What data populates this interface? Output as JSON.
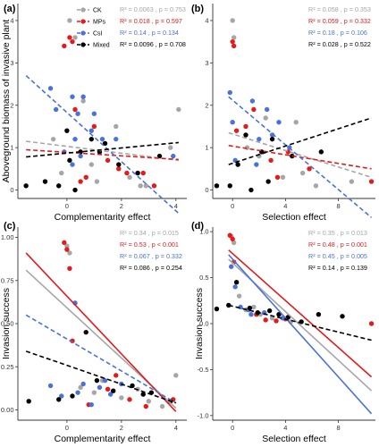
{
  "colors": {
    "CK": "#a6a6a6",
    "MPs": "#e41a1c",
    "CsI": "#4a72d8",
    "Mixed": "#000000",
    "axis": "#333333"
  },
  "legend": {
    "labels": [
      "CK",
      "MPs",
      "CsI",
      "Mixed"
    ]
  },
  "chart_data": [
    {
      "panel": "(a)",
      "type": "scatter",
      "xlabel": "Complementarity effect",
      "ylabel": "Aboveground biomass of invasive plant",
      "xlim": [
        -1.8,
        4.4
      ],
      "ylim": [
        -0.2,
        4.4
      ],
      "xticks": [
        0,
        2,
        4
      ],
      "yticks": [
        0,
        1,
        2,
        3,
        4
      ],
      "stats": [
        {
          "group": "CK",
          "text": "R² = 0.0063 , p = 0.753"
        },
        {
          "group": "MPs",
          "text": "R² = 0.018 , p = 0.597"
        },
        {
          "group": "CsI",
          "text": "R² = 0.14 , p = 0.134"
        },
        {
          "group": "Mixed",
          "text": "R² = 0.0096 , p = 0.708"
        }
      ],
      "fit_lines": [
        {
          "group": "CK",
          "x": [
            -1.5,
            4.1
          ],
          "y": [
            1.15,
            0.7
          ]
        },
        {
          "group": "MPs",
          "x": [
            -1.5,
            4.1
          ],
          "y": [
            0.95,
            0.72
          ]
        },
        {
          "group": "CsI",
          "x": [
            -1.5,
            4.1
          ],
          "y": [
            2.7,
            -0.55
          ]
        },
        {
          "group": "Mixed",
          "x": [
            -1.5,
            4.1
          ],
          "y": [
            0.78,
            1.12
          ]
        }
      ],
      "series": [
        {
          "group": "CK",
          "x": [
            0.1,
            0.3,
            -0.5,
            0.6,
            1.8,
            2.3,
            2.9,
            3.8,
            4.1,
            0.9,
            -0.2,
            2.7,
            1.1
          ],
          "y": [
            4.0,
            3.6,
            1.2,
            2.1,
            1.5,
            0.3,
            0.1,
            1.0,
            1.9,
            0.6,
            0.4,
            0.1,
            0.2
          ]
        },
        {
          "group": "MPs",
          "x": [
            0.1,
            -0.1,
            0.2,
            1.5,
            2.2,
            2.8,
            3.2,
            0.7,
            1.0,
            1.9,
            0.5,
            0.3
          ],
          "y": [
            3.6,
            3.4,
            3.5,
            0.7,
            0.4,
            0.4,
            0.1,
            0.3,
            1.5,
            0.5,
            0.2,
            1.9
          ]
        },
        {
          "group": "CsI",
          "x": [
            -0.6,
            -0.4,
            0.2,
            0.4,
            0.6,
            0.3,
            0.9,
            1.3,
            1.8,
            0.2,
            -0.1,
            0.5,
            3.9,
            1.0
          ],
          "y": [
            2.4,
            1.9,
            2.2,
            1.8,
            2.2,
            1.2,
            1.4,
            1.2,
            1.2,
            0.6,
            0.9,
            0.8,
            0.8,
            1.8
          ]
        },
        {
          "group": "Mixed",
          "x": [
            -1.5,
            -0.8,
            -0.3,
            0.1,
            0.5,
            0.9,
            1.4,
            1.9,
            2.6,
            3.4,
            0.3,
            0.0,
            1.2
          ],
          "y": [
            0.1,
            0.2,
            0.1,
            0.7,
            0.9,
            1.2,
            1.1,
            0.6,
            0.4,
            0.8,
            0.0,
            1.4,
            0.9
          ]
        }
      ]
    },
    {
      "panel": "(b)",
      "type": "scatter",
      "xlabel": "Selection effect",
      "ylabel": "",
      "xlim": [
        -1.5,
        10.8
      ],
      "ylim": [
        -0.2,
        4.4
      ],
      "xticks": [
        0,
        4,
        8
      ],
      "yticks": [
        0,
        1,
        2,
        3,
        4
      ],
      "stats": [
        {
          "group": "CK",
          "text": "R² = 0.058 , p = 0.353"
        },
        {
          "group": "MPs",
          "text": "R² = 0.059 , p = 0.332"
        },
        {
          "group": "CsI",
          "text": "R² = 0.18 , p = 0.106"
        },
        {
          "group": "Mixed",
          "text": "R² = 0.028 , p = 0.522"
        }
      ],
      "fit_lines": [
        {
          "group": "CK",
          "x": [
            -0.3,
            10.5
          ],
          "y": [
            1.35,
            0.3
          ]
        },
        {
          "group": "MPs",
          "x": [
            -0.3,
            10.5
          ],
          "y": [
            1.05,
            0.5
          ]
        },
        {
          "group": "CsI",
          "x": [
            -0.3,
            10.5
          ],
          "y": [
            2.2,
            -0.65
          ]
        },
        {
          "group": "Mixed",
          "x": [
            -0.3,
            10.5
          ],
          "y": [
            0.6,
            1.7
          ]
        }
      ],
      "series": [
        {
          "group": "CK",
          "x": [
            0.0,
            0.1,
            2.5,
            3.8,
            4.8,
            6.3,
            9.0,
            2.0,
            1.1,
            5.3
          ],
          "y": [
            4.0,
            3.6,
            1.7,
            0.3,
            1.6,
            0.1,
            0.2,
            0.8,
            1.0,
            0.4
          ]
        },
        {
          "group": "MPs",
          "x": [
            0.0,
            0.1,
            1.0,
            2.9,
            4.2,
            5.8,
            10.5,
            3.4,
            1.6,
            0.3
          ],
          "y": [
            3.5,
            3.4,
            1.5,
            0.7,
            0.9,
            0.5,
            0.2,
            0.3,
            1.9,
            1.4
          ]
        },
        {
          "group": "CsI",
          "x": [
            -0.2,
            0.0,
            2.0,
            2.6,
            3.0,
            3.5,
            4.3,
            1.5,
            0.2,
            1.8
          ],
          "y": [
            2.3,
            1.6,
            1.2,
            1.9,
            1.3,
            1.6,
            1.0,
            2.1,
            0.7,
            0.6
          ]
        },
        {
          "group": "Mixed",
          "x": [
            -1.2,
            -0.2,
            0.4,
            1.0,
            2.2,
            3.0,
            4.5,
            6.7,
            1.4,
            2.7
          ],
          "y": [
            0.1,
            0.1,
            0.6,
            1.3,
            0.9,
            1.2,
            0.8,
            0.9,
            0.0,
            0.2
          ]
        }
      ]
    },
    {
      "panel": "(c)",
      "type": "scatter",
      "xlabel": "Complementarity effect",
      "ylabel": "Invasion success",
      "xlim": [
        -1.8,
        4.4
      ],
      "ylim": [
        -0.06,
        1.06
      ],
      "xticks": [
        0,
        2,
        4
      ],
      "yticks": [
        0,
        0.25,
        0.5,
        0.75,
        1.0
      ],
      "yticklabels": [
        "0.00",
        "0.25",
        "0.50",
        "0.75",
        "1.00"
      ],
      "stats": [
        {
          "group": "CK",
          "text": "R² = 0.34 , p = 0.015"
        },
        {
          "group": "MPs",
          "text": "R² = 0.53 , p < 0.001"
        },
        {
          "group": "CsI",
          "text": "R² = 0.067 , p = 0.332"
        },
        {
          "group": "Mixed",
          "text": "R² = 0.086 , p = 0.254"
        }
      ],
      "fit_lines": [
        {
          "group": "CK",
          "x": [
            -1.5,
            4.0
          ],
          "y": [
            0.81,
            0.01
          ]
        },
        {
          "group": "MPs",
          "x": [
            -1.5,
            4.0
          ],
          "y": [
            0.91,
            -0.01
          ]
        },
        {
          "group": "CsI",
          "x": [
            -1.5,
            4.0
          ],
          "y": [
            0.55,
            0.04
          ]
        },
        {
          "group": "Mixed",
          "x": [
            -1.5,
            4.0
          ],
          "y": [
            0.34,
            0.04
          ]
        }
      ],
      "series": [
        {
          "group": "CK",
          "x": [
            0.0,
            0.1,
            0.5,
            1.3,
            2.0,
            2.6,
            3.0,
            4.0,
            3.5,
            1.0
          ],
          "y": [
            0.95,
            0.91,
            0.13,
            0.17,
            0.07,
            0.12,
            0.05,
            0.2,
            0.02,
            0.1
          ]
        },
        {
          "group": "MPs",
          "x": [
            -0.1,
            0.0,
            0.1,
            0.2,
            1.5,
            2.3,
            2.9,
            3.9,
            0.8,
            1.8
          ],
          "y": [
            0.97,
            0.93,
            0.82,
            0.4,
            0.12,
            0.06,
            0.02,
            0.06,
            0.03,
            0.2
          ]
        },
        {
          "group": "CsI",
          "x": [
            -0.6,
            -0.2,
            0.3,
            0.6,
            1.2,
            1.6,
            2.0,
            0.9,
            0.4,
            1.4
          ],
          "y": [
            0.14,
            0.08,
            0.62,
            0.15,
            0.13,
            0.09,
            0.15,
            0.03,
            0.1,
            0.17
          ]
        },
        {
          "group": "Mixed",
          "x": [
            -1.4,
            -0.3,
            0.2,
            0.7,
            1.1,
            1.7,
            2.4,
            3.1,
            3.8,
            2.8
          ],
          "y": [
            0.05,
            0.06,
            0.08,
            0.45,
            0.17,
            0.11,
            0.14,
            0.1,
            0.05,
            0.09
          ]
        }
      ]
    },
    {
      "panel": "(d)",
      "type": "scatter",
      "xlabel": "Selection effect",
      "ylabel": "Invasion success",
      "xlim": [
        -1.5,
        10.8
      ],
      "ylim": [
        -1.05,
        1.05
      ],
      "xticks": [
        0,
        4,
        8
      ],
      "yticks": [
        -1.0,
        -0.5,
        0.0,
        0.5,
        1.0
      ],
      "yticklabels": [
        "-1.0",
        "-0.5",
        "0.0",
        "0.5",
        "1.0"
      ],
      "stats": [
        {
          "group": "CK",
          "text": "R² = 0.35 , p = 0.013"
        },
        {
          "group": "MPs",
          "text": "R² = 0.48 , p = 0.001"
        },
        {
          "group": "CsI",
          "text": "R² = 0.45 , p = 0.005"
        },
        {
          "group": "Mixed",
          "text": "R² = 0.14 , p = 0.139"
        }
      ],
      "fit_lines": [
        {
          "group": "CK",
          "x": [
            -0.3,
            10.5
          ],
          "y": [
            0.7,
            -0.73
          ]
        },
        {
          "group": "MPs",
          "x": [
            -0.3,
            10.5
          ],
          "y": [
            0.8,
            -0.58
          ]
        },
        {
          "group": "CsI",
          "x": [
            -0.3,
            10.5
          ],
          "y": [
            0.75,
            -0.98
          ]
        },
        {
          "group": "Mixed",
          "x": [
            -0.3,
            10.5
          ],
          "y": [
            0.2,
            -0.18
          ]
        }
      ],
      "series": [
        {
          "group": "CK",
          "x": [
            -0.1,
            0.1,
            1.0,
            2.1,
            3.0,
            4.4,
            0.5,
            1.6
          ],
          "y": [
            0.95,
            0.88,
            0.15,
            0.1,
            0.06,
            0.02,
            0.3,
            0.18
          ]
        },
        {
          "group": "MPs",
          "x": [
            -0.2,
            0.0,
            0.1,
            2.5,
            3.3,
            4.0,
            10.5,
            1.8
          ],
          "y": [
            0.96,
            0.92,
            0.67,
            0.04,
            0.03,
            0.05,
            0.0,
            0.1
          ]
        },
        {
          "group": "CsI",
          "x": [
            -0.1,
            0.2,
            1.2,
            2.4,
            3.8,
            0.6,
            1.4
          ],
          "y": [
            0.62,
            0.4,
            0.15,
            0.12,
            0.06,
            0.18,
            0.1
          ]
        },
        {
          "group": "Mixed",
          "x": [
            -1.2,
            -0.3,
            0.3,
            1.3,
            1.9,
            2.8,
            3.5,
            4.2,
            6.5,
            8.3,
            5.2
          ],
          "y": [
            0.16,
            0.2,
            0.45,
            0.17,
            0.12,
            0.14,
            0.1,
            0.07,
            0.1,
            0.08,
            0.02
          ]
        }
      ]
    }
  ]
}
